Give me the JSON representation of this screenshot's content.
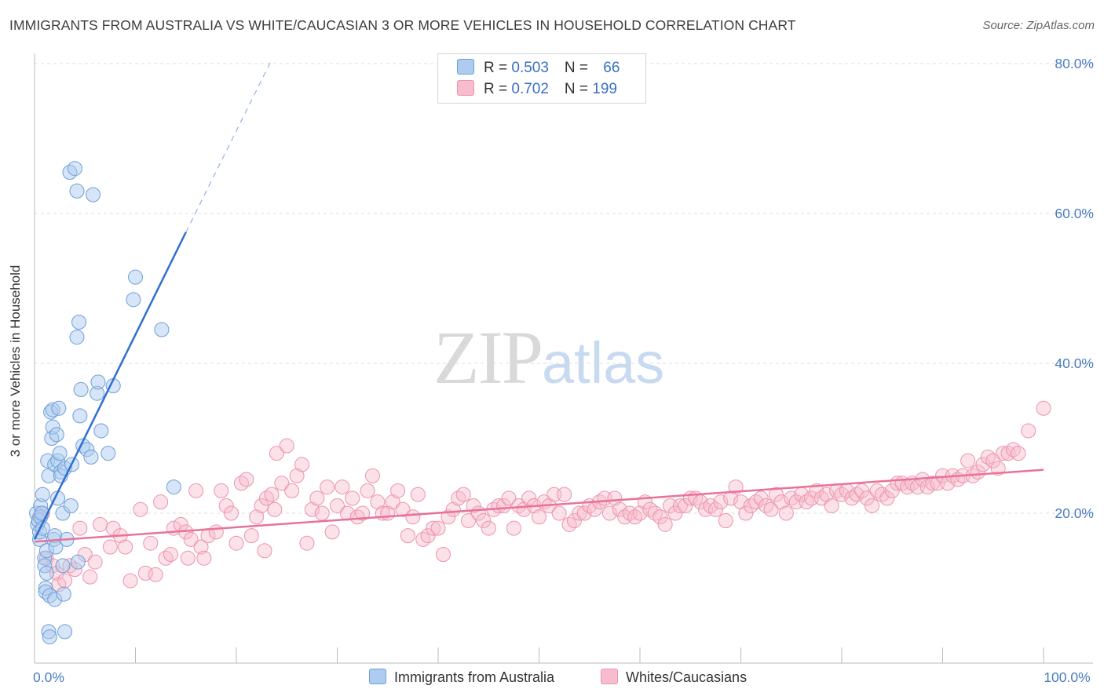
{
  "title": "IMMIGRANTS FROM AUSTRALIA VS WHITE/CAUCASIAN 3 OR MORE VEHICLES IN HOUSEHOLD CORRELATION CHART",
  "source": "Source: ZipAtlas.com",
  "watermark": {
    "zip": "ZIP",
    "atlas": "atlas"
  },
  "legend": {
    "rows": [
      {
        "r_label": "R = ",
        "r_value": "0.503",
        "n_label": "N = ",
        "n_value": "66"
      },
      {
        "r_label": "R = ",
        "r_value": "0.702",
        "n_label": "N = ",
        "n_value": "199"
      }
    ]
  },
  "bottom_legend": [
    "Immigrants from Australia",
    "Whites/Caucasians"
  ],
  "colors": {
    "blue_fill": "#aecbf0",
    "blue_stroke": "#6f9fd8",
    "blue_line": "#2f6fcf",
    "pink_fill": "#f7bccd",
    "pink_stroke": "#ec93ad",
    "pink_line": "#e8729a",
    "grid": "#dddddd",
    "axis": "#bbbbbb"
  },
  "chart_data": {
    "type": "scatter",
    "title": "IMMIGRANTS FROM AUSTRALIA VS WHITE/CAUCASIAN 3 OR MORE VEHICLES IN HOUSEHOLD CORRELATION CHART",
    "xlabel": "",
    "ylabel": "3 or more Vehicles in Household",
    "xlim": [
      0,
      100
    ],
    "ylim": [
      0,
      80
    ],
    "y_ticks": [
      {
        "v": 20,
        "label": "20.0%"
      },
      {
        "v": 40,
        "label": "40.0%"
      },
      {
        "v": 60,
        "label": "60.0%"
      },
      {
        "v": 80,
        "label": "80.0%"
      }
    ],
    "x_ticks": [
      {
        "v": 0,
        "label": "0.0%"
      },
      {
        "v": 100,
        "label": "100.0%"
      }
    ],
    "x_minor_ticks": [
      10,
      20,
      30,
      40,
      50,
      60,
      70,
      80,
      90,
      100
    ],
    "grid": true,
    "series": [
      {
        "name": "Immigrants from Australia",
        "R": 0.503,
        "N": 66,
        "trend": {
          "x0": 0,
          "y0": 16.5,
          "x1": 15,
          "y1": 57.5,
          "dash_to_x": 23.5,
          "dash_to_y": 80.5
        },
        "points": [
          [
            0.2,
            20
          ],
          [
            0.3,
            18.5
          ],
          [
            0.4,
            19
          ],
          [
            0.5,
            16.5
          ],
          [
            0.5,
            17.5
          ],
          [
            0.6,
            21
          ],
          [
            0.6,
            19.5
          ],
          [
            0.7,
            20
          ],
          [
            0.8,
            18
          ],
          [
            0.8,
            22.5
          ],
          [
            1.0,
            14
          ],
          [
            1.0,
            13
          ],
          [
            1.1,
            10
          ],
          [
            1.1,
            9.5
          ],
          [
            1.2,
            12
          ],
          [
            1.2,
            15
          ],
          [
            1.3,
            27
          ],
          [
            1.4,
            25
          ],
          [
            1.4,
            4.2
          ],
          [
            1.5,
            3.5
          ],
          [
            1.5,
            9
          ],
          [
            1.6,
            33.5
          ],
          [
            1.7,
            30
          ],
          [
            1.8,
            31.5
          ],
          [
            1.8,
            33.8
          ],
          [
            1.9,
            16.5
          ],
          [
            2.0,
            26.5
          ],
          [
            2.0,
            17
          ],
          [
            2.0,
            8.5
          ],
          [
            2.1,
            15.5
          ],
          [
            2.2,
            30.5
          ],
          [
            2.3,
            27
          ],
          [
            2.3,
            22
          ],
          [
            2.4,
            34
          ],
          [
            2.5,
            28
          ],
          [
            2.6,
            25.5
          ],
          [
            2.6,
            25
          ],
          [
            2.8,
            20
          ],
          [
            2.8,
            13
          ],
          [
            2.9,
            9.2
          ],
          [
            3.0,
            4.2
          ],
          [
            3.0,
            26
          ],
          [
            3.2,
            16.5
          ],
          [
            3.5,
            65.5
          ],
          [
            3.6,
            21
          ],
          [
            3.7,
            26.5
          ],
          [
            4.0,
            66
          ],
          [
            4.2,
            63
          ],
          [
            4.2,
            43.5
          ],
          [
            4.3,
            13.5
          ],
          [
            4.4,
            45.5
          ],
          [
            4.5,
            33
          ],
          [
            4.6,
            36.5
          ],
          [
            4.8,
            29
          ],
          [
            5.2,
            28.5
          ],
          [
            5.6,
            27.5
          ],
          [
            5.8,
            62.5
          ],
          [
            6.2,
            36
          ],
          [
            6.3,
            37.5
          ],
          [
            6.6,
            31
          ],
          [
            7.3,
            28
          ],
          [
            7.8,
            37
          ],
          [
            9.8,
            48.5
          ],
          [
            10.0,
            51.5
          ],
          [
            12.6,
            44.5
          ],
          [
            13.8,
            23.5
          ]
        ]
      },
      {
        "name": "Whites/Caucasians",
        "R": 0.702,
        "N": 199,
        "trend": {
          "x0": 0,
          "y0": 16.2,
          "x1": 100,
          "y1": 25.8
        },
        "points": [
          [
            0.5,
            19.5
          ],
          [
            0.8,
            20
          ],
          [
            1.2,
            14
          ],
          [
            1.8,
            13
          ],
          [
            2.2,
            12
          ],
          [
            2.4,
            10.5
          ],
          [
            3.0,
            11
          ],
          [
            3.5,
            13
          ],
          [
            4.0,
            12.5
          ],
          [
            4.5,
            18
          ],
          [
            5.0,
            14.5
          ],
          [
            5.5,
            11.5
          ],
          [
            6.0,
            13.5
          ],
          [
            6.5,
            18.5
          ],
          [
            7.5,
            15.5
          ],
          [
            7.8,
            18
          ],
          [
            8.5,
            17
          ],
          [
            9.0,
            15.5
          ],
          [
            9.5,
            11
          ],
          [
            10.5,
            20.5
          ],
          [
            11.0,
            12
          ],
          [
            11.5,
            16
          ],
          [
            12.0,
            11.8
          ],
          [
            12.5,
            21.5
          ],
          [
            13.0,
            14
          ],
          [
            13.5,
            14.5
          ],
          [
            13.8,
            18
          ],
          [
            14.5,
            18.5
          ],
          [
            15.0,
            17.5
          ],
          [
            15.2,
            14
          ],
          [
            15.5,
            16.5
          ],
          [
            16.0,
            23
          ],
          [
            16.5,
            15.5
          ],
          [
            16.8,
            14
          ],
          [
            17.2,
            17
          ],
          [
            18.0,
            17.5
          ],
          [
            18.5,
            23
          ],
          [
            19.0,
            21
          ],
          [
            19.5,
            20
          ],
          [
            20.0,
            16
          ],
          [
            20.5,
            24
          ],
          [
            21.0,
            24.5
          ],
          [
            21.5,
            17
          ],
          [
            22.0,
            19.5
          ],
          [
            22.5,
            21
          ],
          [
            22.8,
            15
          ],
          [
            23.0,
            22
          ],
          [
            23.5,
            22.5
          ],
          [
            23.8,
            20.5
          ],
          [
            24.0,
            28
          ],
          [
            24.5,
            24
          ],
          [
            25.0,
            29
          ],
          [
            25.5,
            23
          ],
          [
            26.0,
            25
          ],
          [
            26.5,
            26.5
          ],
          [
            27.0,
            16
          ],
          [
            27.5,
            20.5
          ],
          [
            28.0,
            22
          ],
          [
            28.5,
            20
          ],
          [
            29.0,
            23.5
          ],
          [
            29.5,
            17.5
          ],
          [
            30.0,
            21
          ],
          [
            30.5,
            23.5
          ],
          [
            31.0,
            20
          ],
          [
            31.5,
            22
          ],
          [
            32.0,
            19.5
          ],
          [
            32.5,
            20
          ],
          [
            33.0,
            23
          ],
          [
            33.5,
            25
          ],
          [
            34.0,
            21.5
          ],
          [
            34.5,
            20
          ],
          [
            35.0,
            20
          ],
          [
            35.5,
            21.5
          ],
          [
            36.0,
            23
          ],
          [
            36.5,
            20.5
          ],
          [
            37.0,
            17
          ],
          [
            37.5,
            19.5
          ],
          [
            38.0,
            22.5
          ],
          [
            38.5,
            16.5
          ],
          [
            39.0,
            17
          ],
          [
            39.5,
            18
          ],
          [
            40.0,
            18
          ],
          [
            40.5,
            14.5
          ],
          [
            41.0,
            19.5
          ],
          [
            41.5,
            20.5
          ],
          [
            42.0,
            22
          ],
          [
            42.5,
            22.5
          ],
          [
            43.0,
            19
          ],
          [
            43.5,
            21
          ],
          [
            44.0,
            20
          ],
          [
            44.5,
            19
          ],
          [
            45.0,
            18
          ],
          [
            45.5,
            20.5
          ],
          [
            46.0,
            21
          ],
          [
            46.5,
            21
          ],
          [
            47.0,
            22
          ],
          [
            47.5,
            18
          ],
          [
            48.0,
            21
          ],
          [
            48.5,
            20.5
          ],
          [
            49.0,
            22
          ],
          [
            49.5,
            21
          ],
          [
            50.0,
            19.5
          ],
          [
            50.5,
            21.5
          ],
          [
            51.0,
            21
          ],
          [
            51.5,
            22.5
          ],
          [
            52.0,
            20
          ],
          [
            52.5,
            22.5
          ],
          [
            53.0,
            18.5
          ],
          [
            53.5,
            19
          ],
          [
            54.0,
            20
          ],
          [
            54.5,
            20
          ],
          [
            55.0,
            21
          ],
          [
            55.5,
            20.5
          ],
          [
            56.0,
            21.5
          ],
          [
            56.5,
            22
          ],
          [
            57.0,
            20
          ],
          [
            57.5,
            22
          ],
          [
            58.0,
            20.5
          ],
          [
            58.5,
            19.5
          ],
          [
            59.0,
            20
          ],
          [
            59.5,
            19.5
          ],
          [
            60.0,
            20
          ],
          [
            60.5,
            21.5
          ],
          [
            61.0,
            20.5
          ],
          [
            61.5,
            20
          ],
          [
            62.0,
            19.5
          ],
          [
            62.5,
            18.5
          ],
          [
            63.0,
            21
          ],
          [
            63.5,
            20
          ],
          [
            64.0,
            21
          ],
          [
            64.5,
            21
          ],
          [
            65.0,
            22
          ],
          [
            65.5,
            22
          ],
          [
            66.0,
            21.5
          ],
          [
            66.5,
            20.5
          ],
          [
            67.0,
            21
          ],
          [
            67.5,
            20.5
          ],
          [
            68.0,
            21.5
          ],
          [
            68.5,
            19
          ],
          [
            69.0,
            22
          ],
          [
            69.5,
            23.5
          ],
          [
            70.0,
            21.5
          ],
          [
            70.5,
            20
          ],
          [
            71.0,
            21
          ],
          [
            71.5,
            21.5
          ],
          [
            72.0,
            22
          ],
          [
            72.5,
            21
          ],
          [
            73.0,
            20.5
          ],
          [
            73.5,
            22.5
          ],
          [
            74.0,
            21.5
          ],
          [
            74.5,
            20
          ],
          [
            75.0,
            22
          ],
          [
            75.5,
            21.5
          ],
          [
            76.0,
            22.5
          ],
          [
            76.5,
            21.5
          ],
          [
            77.0,
            22
          ],
          [
            77.5,
            23
          ],
          [
            78.0,
            22
          ],
          [
            78.5,
            22.5
          ],
          [
            79.0,
            21
          ],
          [
            79.5,
            23
          ],
          [
            80.0,
            22.5
          ],
          [
            80.5,
            23
          ],
          [
            81.0,
            22
          ],
          [
            81.5,
            22.5
          ],
          [
            82.0,
            23
          ],
          [
            82.5,
            22
          ],
          [
            83.0,
            21
          ],
          [
            83.5,
            23
          ],
          [
            84.0,
            22.5
          ],
          [
            84.5,
            22
          ],
          [
            85.0,
            23
          ],
          [
            85.5,
            24
          ],
          [
            86.0,
            24
          ],
          [
            86.5,
            23.5
          ],
          [
            87.0,
            24
          ],
          [
            87.5,
            23.5
          ],
          [
            88.0,
            24.5
          ],
          [
            88.5,
            23.5
          ],
          [
            89.0,
            24
          ],
          [
            89.5,
            24
          ],
          [
            90.0,
            25
          ],
          [
            90.5,
            24
          ],
          [
            91.0,
            25
          ],
          [
            91.5,
            24.5
          ],
          [
            92.0,
            25
          ],
          [
            92.5,
            27
          ],
          [
            93.0,
            25
          ],
          [
            93.5,
            25.5
          ],
          [
            94.0,
            26.5
          ],
          [
            94.5,
            27.5
          ],
          [
            95.0,
            27
          ],
          [
            95.5,
            26
          ],
          [
            96.0,
            28
          ],
          [
            96.5,
            28
          ],
          [
            97.0,
            28.5
          ],
          [
            97.5,
            28
          ],
          [
            98.5,
            31
          ],
          [
            100.0,
            34
          ]
        ]
      }
    ]
  }
}
